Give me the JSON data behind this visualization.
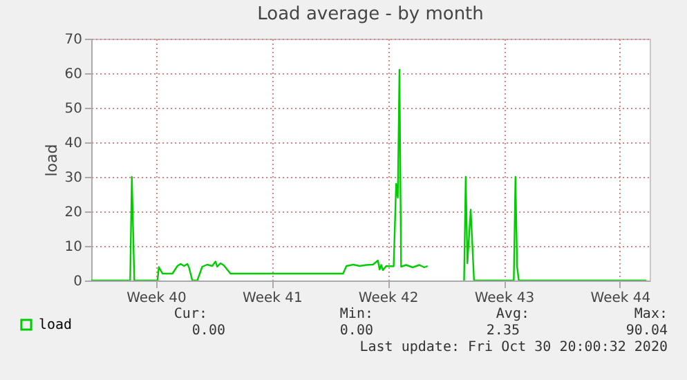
{
  "chart_data": {
    "type": "line",
    "title": "Load average - by month",
    "ylabel": "load",
    "x": [
      "2020-09-27T14:00",
      "2020-09-29T22:24",
      "2020-09-30T00:48",
      "2020-09-30T04:24",
      "2020-10-01T14:00",
      "2020-10-01T15:55",
      "2020-10-01T21:12",
      "2020-10-02T11:36",
      "2020-10-02T18:48",
      "2020-10-02T23:36",
      "2020-10-03T04:24",
      "2020-10-03T09:12",
      "2020-10-03T11:36",
      "2020-10-03T16:24",
      "2020-10-03T23:36",
      "2020-10-04T06:48",
      "2020-10-04T14:00",
      "2020-10-04T21:12",
      "2020-10-05T02:00",
      "2020-10-05T04:24",
      "2020-10-05T09:12",
      "2020-10-05T14:00",
      "2020-10-05T23:36",
      "2020-10-12T18:48",
      "2020-10-12T23:36",
      "2020-10-13T09:12",
      "2020-10-13T18:48",
      "2020-10-14T04:24",
      "2020-10-14T14:00",
      "2020-10-14T21:12",
      "2020-10-14T23:36",
      "2020-10-15T02:00",
      "2020-10-15T04:24",
      "2020-10-15T09:12",
      "2020-10-15T20:00",
      "2020-10-15T23:36",
      "2020-10-16T02:00",
      "2020-10-16T04:24",
      "2020-10-16T06:48",
      "2020-10-16T14:00",
      "2020-10-16T23:36",
      "2020-10-17T09:12",
      "2020-10-17T16:24",
      "2020-10-17T21:12",
      "2020-10-17T22:24",
      "2020-10-20T02:00",
      "2020-10-20T04:24",
      "2020-10-20T06:48",
      "2020-10-20T11:36",
      "2020-10-20T16:24",
      "2020-10-23T02:00",
      "2020-10-23T04:24",
      "2020-10-23T06:48",
      "2020-10-23T09:12",
      "2020-10-31T02:00"
    ],
    "series": [
      {
        "name": "load",
        "color": "#00cc00",
        "values": [
          0,
          0,
          30,
          0,
          0,
          3.9,
          2,
          2,
          4.2,
          4.8,
          4.2,
          4.8,
          3.8,
          0,
          0,
          4,
          4.6,
          4.2,
          5.5,
          4,
          5,
          4.4,
          2,
          2,
          4.2,
          4.6,
          4.2,
          4.5,
          4.6,
          5.8,
          3.2,
          4.5,
          3,
          4.2,
          4.1,
          28,
          24,
          61,
          4,
          4.5,
          3.8,
          4.5,
          3.8,
          4.2,
          null,
          0,
          30,
          5,
          20.5,
          0,
          0,
          30,
          4,
          0,
          0
        ]
      }
    ],
    "xlim": [
      "2020-09-27T14:00",
      "2020-10-31T06:48"
    ],
    "xticks": [
      {
        "value": "2020-10-01T11:36",
        "label": "Week 40"
      },
      {
        "value": "2020-10-08T11:36",
        "label": "Week 41"
      },
      {
        "value": "2020-10-15T11:36",
        "label": "Week 42"
      },
      {
        "value": "2020-10-22T11:36",
        "label": "Week 43"
      },
      {
        "value": "2020-10-29T11:36",
        "label": "Week 44"
      }
    ],
    "ylim": [
      0,
      70
    ],
    "yticks": [
      0,
      10,
      20,
      30,
      40,
      50,
      60,
      70
    ],
    "grid": true,
    "legend": "bottom left",
    "marker": "none",
    "line_style": "solid",
    "annotations": [
      "Cur:",
      "Min:",
      "Avg:",
      "Max:",
      "0.00",
      "0.00",
      "2.35",
      "90.04",
      "Last update: Fri Oct 30 20:00:32 2020"
    ]
  }
}
